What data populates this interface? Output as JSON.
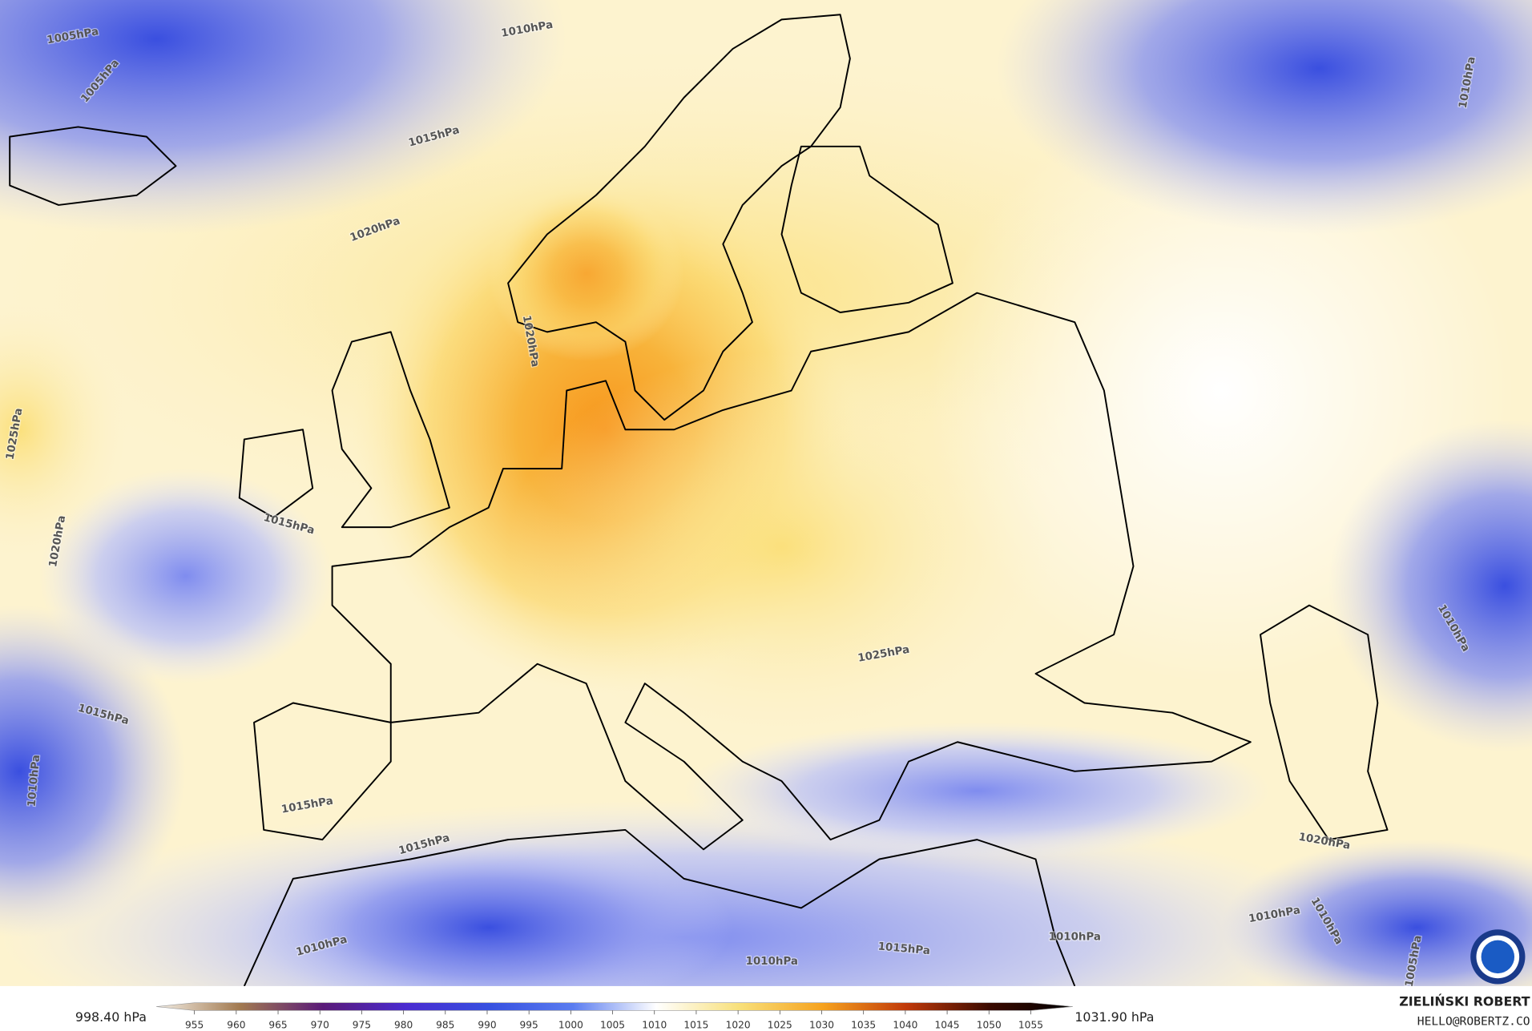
{
  "map": {
    "contour_labels": [
      "1005hPa",
      "1005hPa",
      "1010hPa",
      "1015hPa",
      "1020hPa",
      "1025hPa",
      "1020hPa",
      "1015hPa",
      "1015hPa",
      "1010hPa",
      "1015hPa",
      "1015hPa",
      "1010hPa",
      "1010hPa",
      "1015hPa",
      "1010hPa",
      "1010hPa",
      "1010hPa",
      "1005hPa",
      "1020hPa",
      "1025hPa",
      "1010hPa",
      "1010hPa",
      "1020hPa"
    ]
  },
  "legend": {
    "min_label": "998.40 hPa",
    "max_label": "1031.90 hPa",
    "colorbar": {
      "range": [
        955,
        1055
      ],
      "ticks": [
        955,
        960,
        965,
        970,
        975,
        980,
        985,
        990,
        995,
        1000,
        1005,
        1010,
        1015,
        1020,
        1025,
        1030,
        1035,
        1040,
        1045,
        1050,
        1055
      ],
      "colors": [
        "#f4efe6",
        "#a27a50",
        "#5a1a78",
        "#4a2bd0",
        "#3650e0",
        "#5a7cf0",
        "#ffffff",
        "#f8e07a",
        "#f6a21e",
        "#c0390a",
        "#3a0a00",
        "#000000"
      ]
    },
    "author": "ZIELIŃSKI ROBERT",
    "contact": "HELLO@ROBERTZ.CO"
  }
}
